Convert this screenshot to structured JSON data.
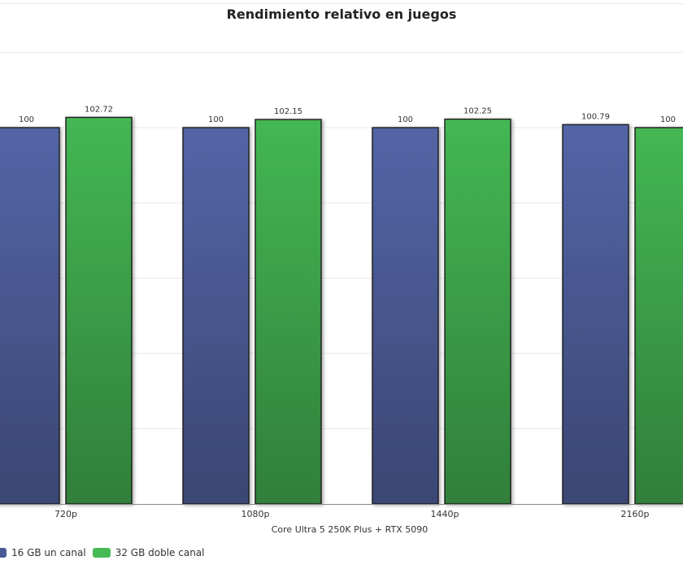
{
  "chart_data": {
    "type": "bar",
    "title": "Rendimiento relativo en juegos",
    "xlabel": "Core Ultra 5 250K Plus + RTX 5090",
    "ylabel": "",
    "categories": [
      "720p",
      "1080p",
      "1440p",
      "2160p"
    ],
    "series": [
      {
        "name": "16 GB un canal",
        "color": "#4a5a94",
        "values": [
          100,
          100,
          100,
          100.79
        ]
      },
      {
        "name": "32 GB doble canal",
        "color": "#3da34a",
        "values": [
          102.72,
          102.15,
          102.25,
          100
        ]
      }
    ],
    "data_labels": [
      [
        "100",
        "100",
        "100",
        "100.79"
      ],
      [
        "102.72",
        "102.15",
        "102.25",
        "100"
      ]
    ],
    "ylim": [
      0,
      120
    ],
    "grid": true,
    "legend": "bottom-left"
  }
}
